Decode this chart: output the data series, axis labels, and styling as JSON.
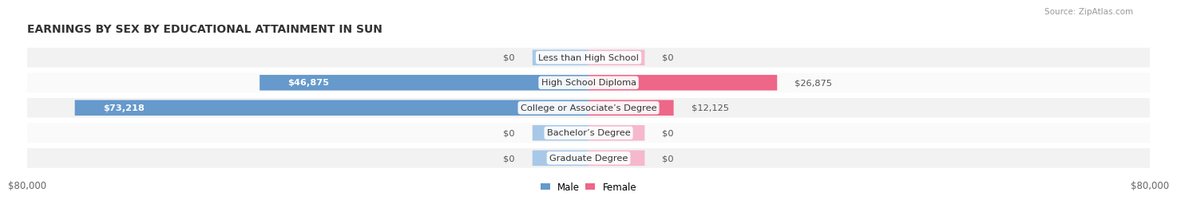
{
  "title": "EARNINGS BY SEX BY EDUCATIONAL ATTAINMENT IN SUN",
  "source": "Source: ZipAtlas.com",
  "categories": [
    "Less than High School",
    "High School Diploma",
    "College or Associate’s Degree",
    "Bachelor’s Degree",
    "Graduate Degree"
  ],
  "male_values": [
    0,
    46875,
    73218,
    0,
    0
  ],
  "female_values": [
    0,
    26875,
    12125,
    0,
    0
  ],
  "male_labels": [
    "$0",
    "$46,875",
    "$73,218",
    "$0",
    "$0"
  ],
  "female_labels": [
    "$0",
    "$26,875",
    "$12,125",
    "$0",
    "$0"
  ],
  "axis_max": 80000,
  "male_color_light": "#a8c8e8",
  "male_color_strong": "#6699cc",
  "female_color_light": "#f5b8cc",
  "female_color_strong": "#ee6688",
  "row_bg_odd": "#f2f2f2",
  "row_bg_even": "#fafafa",
  "title_fontsize": 10,
  "label_fontsize": 8.5,
  "tick_fontsize": 8.5,
  "x_labels": [
    "$80,000",
    "$80,000"
  ],
  "background_color": "#ffffff",
  "zero_stub": 8000
}
